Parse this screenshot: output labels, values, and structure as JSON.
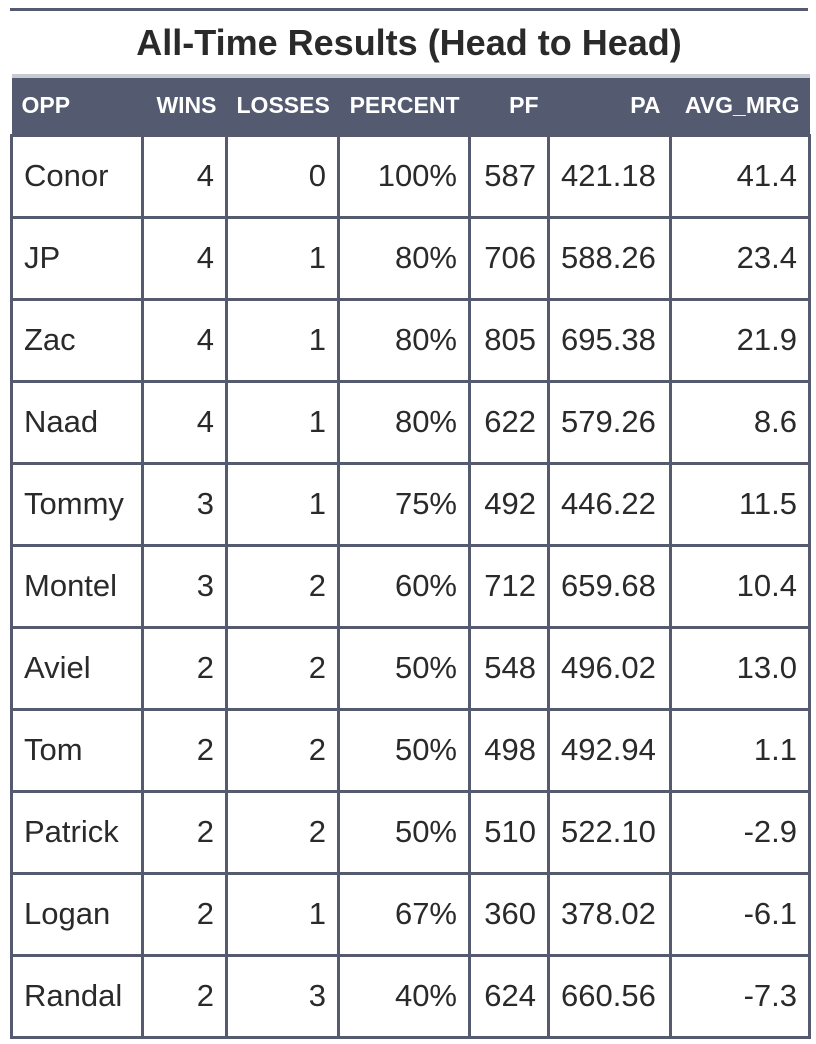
{
  "title": "All-Time Results (Head to Head)",
  "columns": {
    "opp": "OPP",
    "wins": "WINS",
    "losses": "LOSSES",
    "percent": "PERCENT",
    "pf": "PF",
    "pa": "PA",
    "avg_mrg": "AVG_MRG"
  },
  "rows": [
    {
      "opp": "Conor",
      "wins": "4",
      "losses": "0",
      "percent": "100%",
      "pf": "587",
      "pa": "421.18",
      "avg_mrg": "41.4"
    },
    {
      "opp": "JP",
      "wins": "4",
      "losses": "1",
      "percent": "80%",
      "pf": "706",
      "pa": "588.26",
      "avg_mrg": "23.4"
    },
    {
      "opp": "Zac",
      "wins": "4",
      "losses": "1",
      "percent": "80%",
      "pf": "805",
      "pa": "695.38",
      "avg_mrg": "21.9"
    },
    {
      "opp": "Naad",
      "wins": "4",
      "losses": "1",
      "percent": "80%",
      "pf": "622",
      "pa": "579.26",
      "avg_mrg": "8.6"
    },
    {
      "opp": "Tommy",
      "wins": "3",
      "losses": "1",
      "percent": "75%",
      "pf": "492",
      "pa": "446.22",
      "avg_mrg": "11.5"
    },
    {
      "opp": "Montel",
      "wins": "3",
      "losses": "2",
      "percent": "60%",
      "pf": "712",
      "pa": "659.68",
      "avg_mrg": "10.4"
    },
    {
      "opp": "Aviel",
      "wins": "2",
      "losses": "2",
      "percent": "50%",
      "pf": "548",
      "pa": "496.02",
      "avg_mrg": "13.0"
    },
    {
      "opp": "Tom",
      "wins": "2",
      "losses": "2",
      "percent": "50%",
      "pf": "498",
      "pa": "492.94",
      "avg_mrg": "1.1"
    },
    {
      "opp": "Patrick",
      "wins": "2",
      "losses": "2",
      "percent": "50%",
      "pf": "510",
      "pa": "522.10",
      "avg_mrg": "-2.9"
    },
    {
      "opp": "Logan",
      "wins": "2",
      "losses": "1",
      "percent": "67%",
      "pf": "360",
      "pa": "378.02",
      "avg_mrg": "-6.1"
    },
    {
      "opp": "Randal",
      "wins": "2",
      "losses": "3",
      "percent": "40%",
      "pf": "624",
      "pa": "660.56",
      "avg_mrg": "-7.3"
    }
  ],
  "colors": {
    "header_background": "#545a6f",
    "header_text": "#ffffff",
    "grid_lines": "#555a6e"
  }
}
